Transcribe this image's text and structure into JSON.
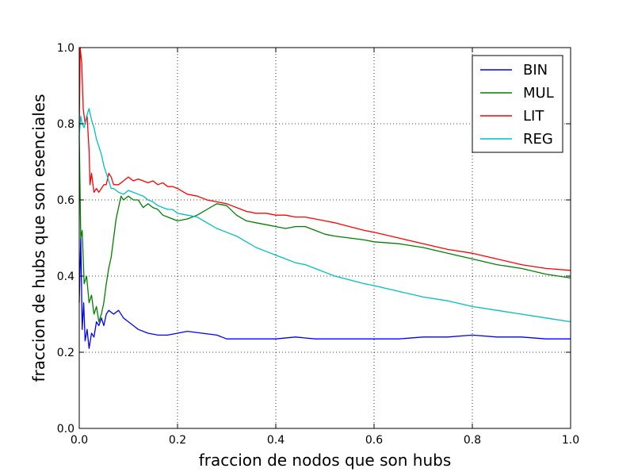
{
  "chart_data": {
    "type": "line",
    "xlabel": "fraccion de nodos que son hubs",
    "ylabel": "fraccion de hubs que son esenciales",
    "xlim": [
      0.0,
      1.0
    ],
    "ylim": [
      0.0,
      1.0
    ],
    "xticks": [
      "0.0",
      "0.2",
      "0.4",
      "0.6",
      "0.8",
      "1.0"
    ],
    "yticks": [
      "0.0",
      "0.2",
      "0.4",
      "0.6",
      "0.8",
      "1.0"
    ],
    "grid": true,
    "legend_position": "top-right",
    "series": [
      {
        "name": "BIN",
        "color": "#0000ff",
        "points": [
          [
            0.0,
            0.33
          ],
          [
            0.003,
            0.5
          ],
          [
            0.006,
            0.26
          ],
          [
            0.009,
            0.33
          ],
          [
            0.012,
            0.23
          ],
          [
            0.016,
            0.26
          ],
          [
            0.02,
            0.21
          ],
          [
            0.025,
            0.25
          ],
          [
            0.03,
            0.24
          ],
          [
            0.035,
            0.28
          ],
          [
            0.04,
            0.27
          ],
          [
            0.045,
            0.29
          ],
          [
            0.05,
            0.27
          ],
          [
            0.055,
            0.3
          ],
          [
            0.06,
            0.31
          ],
          [
            0.07,
            0.3
          ],
          [
            0.08,
            0.31
          ],
          [
            0.09,
            0.29
          ],
          [
            0.1,
            0.28
          ],
          [
            0.11,
            0.27
          ],
          [
            0.12,
            0.26
          ],
          [
            0.14,
            0.25
          ],
          [
            0.16,
            0.245
          ],
          [
            0.18,
            0.245
          ],
          [
            0.2,
            0.25
          ],
          [
            0.22,
            0.255
          ],
          [
            0.25,
            0.25
          ],
          [
            0.28,
            0.245
          ],
          [
            0.3,
            0.235
          ],
          [
            0.33,
            0.235
          ],
          [
            0.36,
            0.235
          ],
          [
            0.4,
            0.235
          ],
          [
            0.44,
            0.24
          ],
          [
            0.48,
            0.235
          ],
          [
            0.52,
            0.235
          ],
          [
            0.56,
            0.235
          ],
          [
            0.6,
            0.235
          ],
          [
            0.65,
            0.235
          ],
          [
            0.7,
            0.24
          ],
          [
            0.75,
            0.24
          ],
          [
            0.8,
            0.245
          ],
          [
            0.85,
            0.24
          ],
          [
            0.9,
            0.24
          ],
          [
            0.95,
            0.235
          ],
          [
            1.0,
            0.235
          ]
        ]
      },
      {
        "name": "MUL",
        "color": "#008000",
        "points": [
          [
            0.0,
            0.77
          ],
          [
            0.003,
            0.5
          ],
          [
            0.006,
            0.52
          ],
          [
            0.01,
            0.38
          ],
          [
            0.015,
            0.4
          ],
          [
            0.02,
            0.33
          ],
          [
            0.025,
            0.35
          ],
          [
            0.03,
            0.3
          ],
          [
            0.035,
            0.32
          ],
          [
            0.04,
            0.28
          ],
          [
            0.045,
            0.3
          ],
          [
            0.05,
            0.33
          ],
          [
            0.055,
            0.38
          ],
          [
            0.06,
            0.42
          ],
          [
            0.065,
            0.45
          ],
          [
            0.07,
            0.5
          ],
          [
            0.075,
            0.55
          ],
          [
            0.08,
            0.58
          ],
          [
            0.085,
            0.61
          ],
          [
            0.09,
            0.6
          ],
          [
            0.1,
            0.61
          ],
          [
            0.11,
            0.6
          ],
          [
            0.12,
            0.6
          ],
          [
            0.13,
            0.58
          ],
          [
            0.14,
            0.59
          ],
          [
            0.15,
            0.58
          ],
          [
            0.16,
            0.575
          ],
          [
            0.17,
            0.56
          ],
          [
            0.18,
            0.555
          ],
          [
            0.19,
            0.55
          ],
          [
            0.2,
            0.545
          ],
          [
            0.22,
            0.55
          ],
          [
            0.24,
            0.56
          ],
          [
            0.26,
            0.575
          ],
          [
            0.28,
            0.59
          ],
          [
            0.3,
            0.585
          ],
          [
            0.32,
            0.56
          ],
          [
            0.34,
            0.545
          ],
          [
            0.36,
            0.54
          ],
          [
            0.38,
            0.535
          ],
          [
            0.4,
            0.53
          ],
          [
            0.42,
            0.525
          ],
          [
            0.44,
            0.53
          ],
          [
            0.46,
            0.53
          ],
          [
            0.48,
            0.52
          ],
          [
            0.5,
            0.51
          ],
          [
            0.52,
            0.505
          ],
          [
            0.55,
            0.5
          ],
          [
            0.58,
            0.495
          ],
          [
            0.6,
            0.49
          ],
          [
            0.65,
            0.485
          ],
          [
            0.7,
            0.475
          ],
          [
            0.75,
            0.46
          ],
          [
            0.8,
            0.445
          ],
          [
            0.85,
            0.43
          ],
          [
            0.9,
            0.42
          ],
          [
            0.95,
            0.405
          ],
          [
            1.0,
            0.395
          ]
        ]
      },
      {
        "name": "LIT",
        "color": "#ff0000",
        "points": [
          [
            0.0,
            0.79
          ],
          [
            0.002,
            1.0
          ],
          [
            0.005,
            0.96
          ],
          [
            0.008,
            0.84
          ],
          [
            0.012,
            0.8
          ],
          [
            0.016,
            0.82
          ],
          [
            0.02,
            0.73
          ],
          [
            0.022,
            0.64
          ],
          [
            0.025,
            0.67
          ],
          [
            0.03,
            0.62
          ],
          [
            0.035,
            0.63
          ],
          [
            0.04,
            0.62
          ],
          [
            0.045,
            0.63
          ],
          [
            0.05,
            0.64
          ],
          [
            0.055,
            0.64
          ],
          [
            0.06,
            0.67
          ],
          [
            0.065,
            0.66
          ],
          [
            0.07,
            0.64
          ],
          [
            0.08,
            0.64
          ],
          [
            0.09,
            0.65
          ],
          [
            0.1,
            0.66
          ],
          [
            0.11,
            0.65
          ],
          [
            0.12,
            0.655
          ],
          [
            0.13,
            0.65
          ],
          [
            0.14,
            0.645
          ],
          [
            0.15,
            0.65
          ],
          [
            0.16,
            0.64
          ],
          [
            0.17,
            0.645
          ],
          [
            0.18,
            0.635
          ],
          [
            0.19,
            0.635
          ],
          [
            0.2,
            0.63
          ],
          [
            0.22,
            0.615
          ],
          [
            0.24,
            0.61
          ],
          [
            0.26,
            0.6
          ],
          [
            0.28,
            0.595
          ],
          [
            0.3,
            0.59
          ],
          [
            0.32,
            0.58
          ],
          [
            0.34,
            0.57
          ],
          [
            0.36,
            0.565
          ],
          [
            0.38,
            0.565
          ],
          [
            0.4,
            0.56
          ],
          [
            0.42,
            0.56
          ],
          [
            0.44,
            0.555
          ],
          [
            0.46,
            0.555
          ],
          [
            0.48,
            0.55
          ],
          [
            0.5,
            0.545
          ],
          [
            0.52,
            0.54
          ],
          [
            0.55,
            0.53
          ],
          [
            0.58,
            0.52
          ],
          [
            0.6,
            0.515
          ],
          [
            0.65,
            0.5
          ],
          [
            0.7,
            0.485
          ],
          [
            0.75,
            0.47
          ],
          [
            0.8,
            0.46
          ],
          [
            0.85,
            0.445
          ],
          [
            0.9,
            0.43
          ],
          [
            0.95,
            0.42
          ],
          [
            1.0,
            0.415
          ]
        ]
      },
      {
        "name": "REG",
        "color": "#00bfbf",
        "points": [
          [
            0.0,
            0.77
          ],
          [
            0.003,
            0.82
          ],
          [
            0.006,
            0.8
          ],
          [
            0.01,
            0.79
          ],
          [
            0.015,
            0.82
          ],
          [
            0.02,
            0.84
          ],
          [
            0.025,
            0.81
          ],
          [
            0.03,
            0.79
          ],
          [
            0.035,
            0.76
          ],
          [
            0.04,
            0.74
          ],
          [
            0.045,
            0.72
          ],
          [
            0.05,
            0.69
          ],
          [
            0.055,
            0.67
          ],
          [
            0.06,
            0.65
          ],
          [
            0.065,
            0.63
          ],
          [
            0.07,
            0.63
          ],
          [
            0.08,
            0.62
          ],
          [
            0.09,
            0.615
          ],
          [
            0.1,
            0.625
          ],
          [
            0.11,
            0.62
          ],
          [
            0.12,
            0.615
          ],
          [
            0.13,
            0.61
          ],
          [
            0.14,
            0.6
          ],
          [
            0.15,
            0.595
          ],
          [
            0.16,
            0.585
          ],
          [
            0.17,
            0.58
          ],
          [
            0.18,
            0.575
          ],
          [
            0.19,
            0.575
          ],
          [
            0.2,
            0.565
          ],
          [
            0.22,
            0.56
          ],
          [
            0.24,
            0.555
          ],
          [
            0.26,
            0.54
          ],
          [
            0.28,
            0.525
          ],
          [
            0.3,
            0.515
          ],
          [
            0.32,
            0.505
          ],
          [
            0.34,
            0.49
          ],
          [
            0.36,
            0.475
          ],
          [
            0.38,
            0.465
          ],
          [
            0.4,
            0.455
          ],
          [
            0.42,
            0.445
          ],
          [
            0.44,
            0.435
          ],
          [
            0.46,
            0.43
          ],
          [
            0.48,
            0.42
          ],
          [
            0.5,
            0.41
          ],
          [
            0.52,
            0.4
          ],
          [
            0.55,
            0.39
          ],
          [
            0.58,
            0.38
          ],
          [
            0.6,
            0.375
          ],
          [
            0.65,
            0.36
          ],
          [
            0.7,
            0.345
          ],
          [
            0.75,
            0.335
          ],
          [
            0.8,
            0.32
          ],
          [
            0.85,
            0.31
          ],
          [
            0.9,
            0.3
          ],
          [
            0.95,
            0.29
          ],
          [
            1.0,
            0.28
          ]
        ]
      }
    ]
  }
}
